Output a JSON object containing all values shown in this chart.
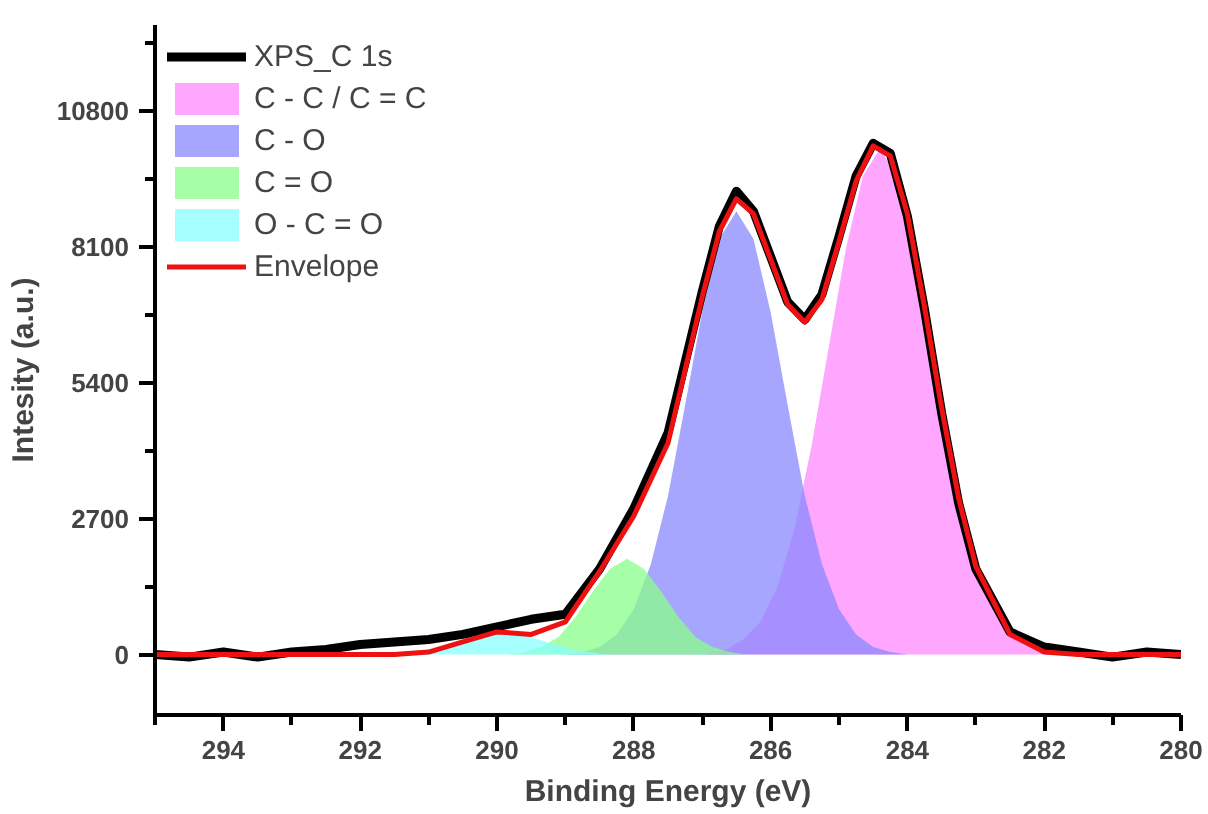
{
  "chart_data": {
    "type": "line",
    "xlabel": "Binding Energy (eV)",
    "ylabel": "Intesity (a.u.)",
    "xlim": [
      295,
      280
    ],
    "ylim": [
      -1200,
      12500
    ],
    "xticks": [
      {
        "value": 295,
        "label": null
      },
      294,
      {
        "value": 293,
        "label": null
      },
      292,
      {
        "value": 291,
        "label": null
      },
      290,
      {
        "value": 289,
        "label": null
      },
      288,
      {
        "value": 287,
        "label": null
      },
      286,
      {
        "value": 285,
        "label": null
      },
      284,
      {
        "value": 283,
        "label": null
      },
      282,
      {
        "value": 281,
        "label": null
      },
      280
    ],
    "yticks": [
      0,
      {
        "value": 1350,
        "label": null
      },
      2700,
      {
        "value": 4050,
        "label": null
      },
      5400,
      {
        "value": 6750,
        "label": null
      },
      8100,
      {
        "value": 9450,
        "label": null
      },
      10800,
      {
        "value": 12150,
        "label": null
      }
    ],
    "grid": false,
    "legend": "top left",
    "series": [
      {
        "name": "XPS_C 1s",
        "color": "#000000",
        "x": [
          295,
          294.5,
          294,
          293.5,
          293,
          292.5,
          292,
          291.5,
          291,
          290.5,
          290,
          289.5,
          289,
          288.5,
          288,
          287.5,
          287,
          286.75,
          286.5,
          286.25,
          286,
          285.75,
          285.5,
          285.25,
          285,
          284.75,
          284.5,
          284.25,
          284,
          283.75,
          283.5,
          283.25,
          283,
          282.5,
          282,
          281.5,
          281,
          280.5,
          280
        ],
        "values": [
          0,
          -50,
          50,
          -50,
          50,
          100,
          200,
          250,
          300,
          400,
          550,
          700,
          800,
          1700,
          2900,
          4400,
          7200,
          8500,
          9200,
          8800,
          7900,
          7000,
          6650,
          7150,
          8300,
          9500,
          10150,
          9950,
          8700,
          6850,
          4800,
          3000,
          1700,
          450,
          150,
          50,
          -50,
          50,
          0
        ]
      },
      {
        "name": "C - C / C = C",
        "type": "area",
        "color": "#ff88ff",
        "x": [
          286.9,
          286.65,
          286.4,
          286.15,
          285.9,
          285.65,
          285.4,
          285.15,
          284.9,
          284.65,
          284.4,
          284.15,
          283.9,
          283.65,
          283.4,
          283.15,
          282.9,
          282.65,
          282.4,
          282.15,
          281.9
        ],
        "values": [
          50,
          100,
          300,
          650,
          1350,
          2500,
          4150,
          6100,
          8050,
          9500,
          10050,
          9500,
          8050,
          6100,
          4150,
          2500,
          1350,
          650,
          300,
          100,
          50
        ]
      },
      {
        "name": "C - O",
        "type": "area",
        "color": "#8888ff",
        "x": [
          289.0,
          288.75,
          288.5,
          288.25,
          288.0,
          287.75,
          287.5,
          287.25,
          287.0,
          286.75,
          286.5,
          286.25,
          286.0,
          285.75,
          285.5,
          285.25,
          285.0,
          284.75,
          284.5,
          284.25,
          284.0
        ],
        "values": [
          0,
          50,
          150,
          400,
          900,
          1800,
          3150,
          4950,
          6800,
          8250,
          8800,
          8250,
          6800,
          4950,
          3150,
          1800,
          900,
          400,
          150,
          50,
          0
        ]
      },
      {
        "name": "C = O",
        "type": "area",
        "color": "#88ff88",
        "x": [
          289.85,
          289.6,
          289.35,
          289.1,
          288.85,
          288.6,
          288.35,
          288.1,
          287.85,
          287.6,
          287.35,
          287.1,
          286.85,
          286.6,
          286.35
        ],
        "values": [
          0,
          50,
          150,
          350,
          750,
          1250,
          1700,
          1900,
          1700,
          1250,
          750,
          350,
          150,
          50,
          0
        ]
      },
      {
        "name": "O - C = O",
        "type": "area",
        "color": "#88ffff",
        "x": [
          291.65,
          291.4,
          291.15,
          290.9,
          290.65,
          290.4,
          290.15,
          289.9,
          289.65,
          289.4,
          289.15,
          288.9,
          288.65,
          288.4,
          288.15
        ],
        "values": [
          0,
          0,
          50,
          100,
          200,
          300,
          400,
          450,
          400,
          300,
          200,
          100,
          50,
          0,
          0
        ]
      },
      {
        "name": "Envelope",
        "color": "#ee1111",
        "x": [
          295,
          293,
          292,
          291.5,
          291,
          290.5,
          290,
          289.5,
          289,
          288.5,
          288,
          287.5,
          287,
          286.75,
          286.5,
          286.25,
          286,
          285.75,
          285.5,
          285.25,
          285,
          284.75,
          284.5,
          284.25,
          284,
          283.75,
          283.5,
          283.25,
          283,
          282.5,
          282,
          281.5,
          280
        ],
        "values": [
          0,
          0,
          0,
          0,
          50,
          250,
          450,
          400,
          650,
          1650,
          2750,
          4200,
          7100,
          8400,
          9050,
          8750,
          7850,
          6950,
          6600,
          7050,
          8200,
          9400,
          10100,
          9900,
          8750,
          6900,
          4900,
          3100,
          1750,
          400,
          50,
          0,
          0
        ]
      }
    ]
  }
}
